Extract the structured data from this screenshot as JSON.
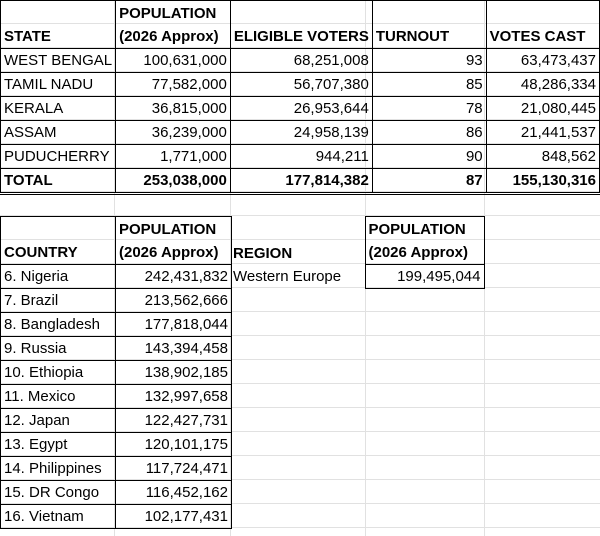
{
  "table1": {
    "headers": [
      "STATE",
      "POPULATION",
      "(2026 Approx)",
      "ELIGIBLE VOTERS",
      "TURNOUT",
      "VOTES CAST"
    ],
    "rows": [
      [
        "WEST BENGAL",
        "100,631,000",
        "68,251,008",
        "93",
        "63,473,437"
      ],
      [
        "TAMIL NADU",
        "77,582,000",
        "56,707,380",
        "85",
        "48,286,334"
      ],
      [
        "KERALA",
        "36,815,000",
        "26,953,644",
        "78",
        "21,080,445"
      ],
      [
        "ASSAM",
        "36,239,000",
        "24,958,139",
        "86",
        "21,441,537"
      ],
      [
        "PUDUCHERRY",
        "1,771,000",
        "944,211",
        "90",
        "848,562"
      ]
    ],
    "total": [
      "TOTAL",
      "253,038,000",
      "177,814,382",
      "87",
      "155,130,316"
    ]
  },
  "table2": {
    "headers": [
      "COUNTRY",
      "POPULATION",
      "(2026 Approx)"
    ],
    "rows": [
      [
        "6. Nigeria",
        "242,431,832"
      ],
      [
        "7. Brazil",
        "213,562,666"
      ],
      [
        "8. Bangladesh",
        "177,818,044"
      ],
      [
        "9. Russia",
        "143,394,458"
      ],
      [
        "10. Ethiopia",
        "138,902,185"
      ],
      [
        "11. Mexico",
        "132,997,658"
      ],
      [
        "12. Japan",
        "122,427,731"
      ],
      [
        "13. Egypt",
        "120,101,175"
      ],
      [
        "14. Philippines",
        "117,724,471"
      ],
      [
        "15. DR Congo",
        "116,452,162"
      ],
      [
        "16. Vietnam",
        "102,177,431"
      ]
    ]
  },
  "table3": {
    "headers": [
      "REGION",
      "POPULATION",
      "(2026 Approx)"
    ],
    "rows": [
      [
        "Western Europe",
        "199,495,044"
      ]
    ]
  }
}
